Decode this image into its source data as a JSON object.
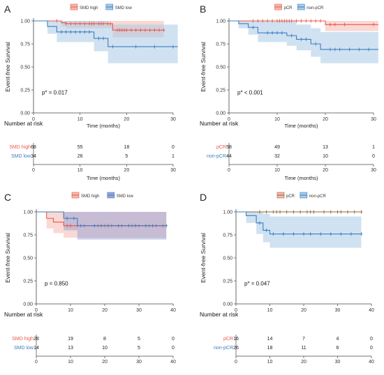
{
  "figure": {
    "chart_data": [
      {
        "panel_letter": "A",
        "type": "line",
        "ylabel": "Event-free Survival",
        "xlabel": "Time (months)",
        "xlim": [
          0,
          30
        ],
        "ylim": [
          0,
          1
        ],
        "xticks": [
          0,
          10,
          20,
          30
        ],
        "yticks": [
          "0.00",
          "0.25",
          "0.50",
          "0.75",
          "1.00"
        ],
        "legend": {
          "position": "top",
          "entries": [
            "SMD high",
            "SMD low"
          ]
        },
        "pvalue": "p* = 0.017",
        "series": [
          {
            "name": "SMD high",
            "color": "#e8584a",
            "fill": "#f5b8ae",
            "steps": [
              [
                0,
                1.0
              ],
              [
                6,
                1.0
              ],
              [
                6,
                0.98
              ],
              [
                7,
                0.97
              ],
              [
                17,
                0.97
              ],
              [
                17,
                0.9
              ],
              [
                28,
                0.9
              ]
            ],
            "ci_lower": [
              [
                0,
                1.0
              ],
              [
                6,
                0.94
              ],
              [
                7,
                0.92
              ],
              [
                17,
                0.92
              ],
              [
                17,
                0.82
              ],
              [
                28,
                0.82
              ]
            ],
            "ci_upper": [
              [
                0,
                1.0
              ],
              [
                17,
                1.0
              ],
              [
                28,
                1.0
              ]
            ],
            "censor_x": [
              5,
              7,
              8,
              9,
              10,
              11,
              12,
              12.5,
              13,
              14,
              14.5,
              15,
              16,
              16.5,
              18,
              18.5,
              19,
              19.5,
              20,
              21,
              22,
              23,
              24,
              25,
              26,
              27,
              28
            ]
          },
          {
            "name": "SMD low",
            "color": "#3c7dc1",
            "fill": "#a9cbe6",
            "steps": [
              [
                0,
                1.0
              ],
              [
                3,
                1.0
              ],
              [
                3,
                0.94
              ],
              [
                5,
                0.94
              ],
              [
                5,
                0.88
              ],
              [
                13,
                0.88
              ],
              [
                13,
                0.81
              ],
              [
                16,
                0.81
              ],
              [
                16,
                0.72
              ],
              [
                31,
                0.72
              ]
            ],
            "ci_lower": [
              [
                0,
                1.0
              ],
              [
                3,
                0.86
              ],
              [
                5,
                0.77
              ],
              [
                13,
                0.67
              ],
              [
                16,
                0.54
              ],
              [
                31,
                0.54
              ]
            ],
            "ci_upper": [
              [
                0,
                1.0
              ],
              [
                13,
                1.0
              ],
              [
                16,
                0.96
              ],
              [
                31,
                0.96
              ]
            ],
            "censor_x": [
              6,
              7,
              8,
              9,
              10,
              11,
              12,
              14,
              15,
              17,
              22,
              26,
              30
            ]
          }
        ],
        "risk_table": {
          "title": "Number at risk",
          "times": [
            0,
            10,
            20,
            30
          ],
          "xlabel": "Time (months)",
          "rows": [
            {
              "label": "SMD high",
              "color": "#e8584a",
              "values": [
                "68",
                "55",
                "18",
                "0"
              ]
            },
            {
              "label": "SMD low",
              "color": "#3c7dc1",
              "values": [
                "34",
                "26",
                "5",
                "1"
              ]
            }
          ]
        }
      },
      {
        "panel_letter": "B",
        "type": "line",
        "ylabel": "Event-free Survival",
        "xlabel": "Time (months)",
        "xlim": [
          0,
          30
        ],
        "ylim": [
          0,
          1
        ],
        "xticks": [
          0,
          10,
          20,
          30
        ],
        "yticks": [
          "0.00",
          "0.25",
          "0.50",
          "0.75",
          "1.00"
        ],
        "legend": {
          "position": "top",
          "entries": [
            "pCR",
            "non-pCR"
          ]
        },
        "pvalue": "p* < 0.001",
        "series": [
          {
            "name": "pCR",
            "color": "#e8584a",
            "fill": "#f5b8ae",
            "steps": [
              [
                0,
                1.0
              ],
              [
                20,
                1.0
              ],
              [
                20,
                0.96
              ],
              [
                31,
                0.96
              ]
            ],
            "ci_lower": [
              [
                0,
                1.0
              ],
              [
                20,
                0.89
              ],
              [
                31,
                0.89
              ]
            ],
            "ci_upper": [
              [
                0,
                1.0
              ],
              [
                31,
                1.0
              ]
            ],
            "censor_x": [
              5,
              6,
              7,
              8,
              9,
              10,
              10.5,
              11,
              11.5,
              12,
              12.5,
              13,
              14,
              15,
              16,
              17,
              18,
              19,
              21,
              22,
              24,
              30
            ]
          },
          {
            "name": "non-pCR",
            "color": "#3c7dc1",
            "fill": "#a9cbe6",
            "steps": [
              [
                0,
                1.0
              ],
              [
                2,
                1.0
              ],
              [
                2,
                0.97
              ],
              [
                4,
                0.97
              ],
              [
                4,
                0.93
              ],
              [
                6,
                0.93
              ],
              [
                6,
                0.87
              ],
              [
                12,
                0.87
              ],
              [
                12,
                0.84
              ],
              [
                14,
                0.84
              ],
              [
                14,
                0.8
              ],
              [
                17,
                0.8
              ],
              [
                17,
                0.75
              ],
              [
                19,
                0.75
              ],
              [
                19,
                0.69
              ],
              [
                31,
                0.69
              ]
            ],
            "ci_lower": [
              [
                0,
                1.0
              ],
              [
                2,
                0.92
              ],
              [
                4,
                0.85
              ],
              [
                6,
                0.77
              ],
              [
                12,
                0.73
              ],
              [
                14,
                0.68
              ],
              [
                17,
                0.61
              ],
              [
                19,
                0.54
              ],
              [
                31,
                0.54
              ]
            ],
            "ci_upper": [
              [
                0,
                1.0
              ],
              [
                12,
                1.0
              ],
              [
                14,
                0.96
              ],
              [
                17,
                0.92
              ],
              [
                19,
                0.88
              ],
              [
                31,
                0.88
              ]
            ],
            "censor_x": [
              5,
              8,
              9,
              10,
              11,
              13,
              15,
              16,
              18,
              21,
              22,
              23,
              25,
              27,
              29
            ]
          }
        ],
        "risk_table": {
          "title": "Number at risk",
          "times": [
            0,
            10,
            20,
            30
          ],
          "xlabel": "Time (months)",
          "rows": [
            {
              "label": "pCR",
              "color": "#e8584a",
              "values": [
                "58",
                "49",
                "13",
                "1"
              ]
            },
            {
              "label": "non-pCR",
              "color": "#3c7dc1",
              "values": [
                "44",
                "32",
                "10",
                "0"
              ]
            }
          ]
        }
      },
      {
        "panel_letter": "C",
        "type": "line",
        "ylabel": "Event-free Survival",
        "xlabel": "",
        "xlim": [
          0,
          40
        ],
        "ylim": [
          0,
          1
        ],
        "xticks": [
          0,
          10,
          20,
          30,
          40
        ],
        "yticks": [
          "0.00",
          "0.25",
          "0.50",
          "0.75",
          "1.00"
        ],
        "legend": {
          "position": "top",
          "entries": [
            "SMD high",
            "SMD low"
          ]
        },
        "pvalue": "p = 0.850",
        "series": [
          {
            "name": "SMD high",
            "color": "#e8584a",
            "fill": "#f5b8ae",
            "steps": [
              [
                0,
                1.0
              ],
              [
                3,
                1.0
              ],
              [
                3,
                0.93
              ],
              [
                5,
                0.93
              ],
              [
                5,
                0.89
              ],
              [
                8,
                0.89
              ],
              [
                8,
                0.85
              ],
              [
                38,
                0.85
              ]
            ],
            "ci_lower": [
              [
                0,
                1.0
              ],
              [
                3,
                0.82
              ],
              [
                5,
                0.77
              ],
              [
                8,
                0.72
              ],
              [
                38,
                0.72
              ]
            ],
            "ci_upper": [
              [
                0,
                1.0
              ],
              [
                38,
                1.0
              ]
            ],
            "censor_x": [
              9,
              10,
              12,
              14,
              18,
              20,
              22,
              25,
              28,
              30,
              33,
              35,
              37
            ]
          },
          {
            "name": "SMD low",
            "color": "#3c7dc1",
            "fill": "#9aa6d6",
            "steps": [
              [
                0,
                1.0
              ],
              [
                8,
                1.0
              ],
              [
                8,
                0.93
              ],
              [
                12,
                0.93
              ],
              [
                12,
                0.85
              ],
              [
                38,
                0.85
              ]
            ],
            "ci_lower": [
              [
                0,
                1.0
              ],
              [
                8,
                0.8
              ],
              [
                12,
                0.7
              ],
              [
                38,
                0.7
              ]
            ],
            "ci_upper": [
              [
                0,
                1.0
              ],
              [
                38,
                1.0
              ]
            ],
            "censor_x": [
              9,
              11,
              13,
              17,
              19,
              21,
              24,
              27,
              29,
              32,
              34,
              38
            ]
          }
        ],
        "risk_table": {
          "title": "Number at risk",
          "times": [
            0,
            10,
            20,
            30,
            40
          ],
          "xlabel": "",
          "rows": [
            {
              "label": "SMD high",
              "color": "#e8584a",
              "values": [
                "28",
                "19",
                "8",
                "5",
                "0"
              ]
            },
            {
              "label": "SMD low",
              "color": "#3c7dc1",
              "values": [
                "14",
                "13",
                "10",
                "5",
                "0"
              ]
            }
          ]
        }
      },
      {
        "panel_letter": "D",
        "type": "line",
        "ylabel": "Event-free Survival",
        "xlabel": "",
        "xlim": [
          0,
          40
        ],
        "ylim": [
          0,
          1
        ],
        "xticks": [
          0,
          10,
          20,
          30,
          40
        ],
        "yticks": [
          "0.00",
          "0.25",
          "0.50",
          "0.75",
          "1.00"
        ],
        "legend": {
          "position": "top",
          "entries": [
            "pCR",
            "non-pCR"
          ]
        },
        "pvalue": "p* = 0.047",
        "series": [
          {
            "name": "pCR",
            "color": "#8c6a3c",
            "fill": "#f5b8ae",
            "steps": [
              [
                0,
                1.0
              ],
              [
                37,
                1.0
              ]
            ],
            "ci_lower": [
              [
                0,
                1.0
              ],
              [
                37,
                0.94
              ]
            ],
            "ci_upper": [
              [
                0,
                1.0
              ],
              [
                37,
                1.0
              ]
            ],
            "censor_x": [
              7,
              9,
              11,
              12,
              13,
              15,
              17,
              19,
              21,
              22,
              23,
              26,
              28,
              30,
              31,
              33,
              35,
              37
            ]
          },
          {
            "name": "non-pCR",
            "color": "#3c7dc1",
            "fill": "#a9cbe6",
            "steps": [
              [
                0,
                1.0
              ],
              [
                3,
                1.0
              ],
              [
                3,
                0.96
              ],
              [
                6,
                0.96
              ],
              [
                6,
                0.88
              ],
              [
                8,
                0.88
              ],
              [
                8,
                0.8
              ],
              [
                10,
                0.8
              ],
              [
                10,
                0.76
              ],
              [
                37,
                0.76
              ]
            ],
            "ci_lower": [
              [
                0,
                1.0
              ],
              [
                3,
                0.88
              ],
              [
                6,
                0.76
              ],
              [
                8,
                0.67
              ],
              [
                10,
                0.61
              ],
              [
                37,
                0.61
              ]
            ],
            "ci_upper": [
              [
                0,
                1.0
              ],
              [
                6,
                1.0
              ],
              [
                8,
                0.98
              ],
              [
                10,
                0.95
              ],
              [
                37,
                0.95
              ]
            ],
            "censor_x": [
              7,
              9,
              11,
              14,
              17,
              20,
              22,
              25,
              28,
              31,
              34,
              37
            ]
          }
        ],
        "risk_table": {
          "title": "Number at risk",
          "times": [
            0,
            10,
            20,
            30,
            40
          ],
          "xlabel": "",
          "rows": [
            {
              "label": "pCR",
              "color": "#e8584a",
              "values": [
                "16",
                "14",
                "7",
                "4",
                "0"
              ]
            },
            {
              "label": "non-pCR",
              "color": "#3c7dc1",
              "values": [
                "26",
                "18",
                "11",
                "6",
                "0"
              ]
            }
          ]
        }
      }
    ]
  }
}
